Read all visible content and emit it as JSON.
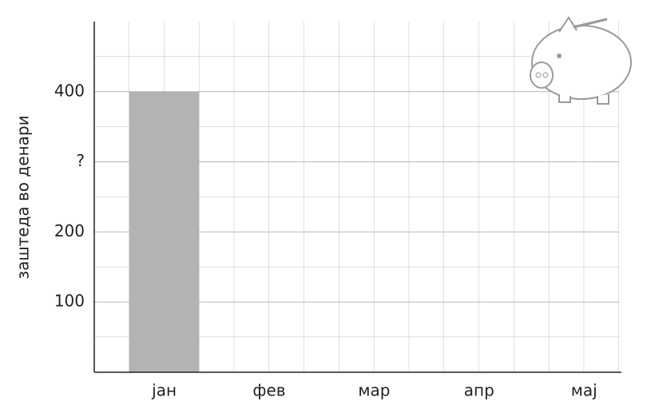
{
  "chart_data": {
    "type": "bar",
    "y_label": "заштеда во денари",
    "categories": [
      "јан",
      "фев",
      "мар",
      "апр",
      "мај"
    ],
    "values": [
      400,
      null,
      null,
      null,
      null
    ],
    "color": "#b3b3b3",
    "ylim": [
      0,
      500
    ],
    "yticks": [
      100,
      200,
      {
        "value": 300,
        "label": "?"
      },
      400
    ],
    "grid": true
  }
}
